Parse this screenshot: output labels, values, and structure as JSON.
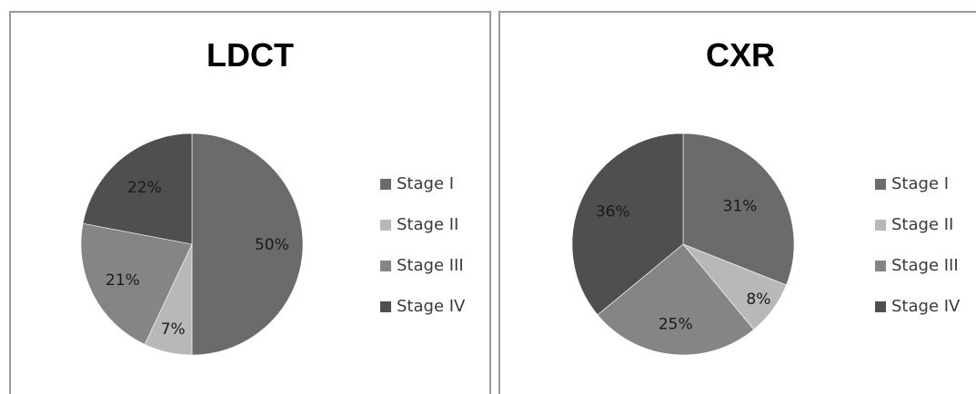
{
  "colors": {
    "Stage I": "#6b6b6b",
    "Stage II": "#b8b8b8",
    "Stage III": "#858585",
    "Stage IV": "#4f4f4f"
  },
  "chart_data": [
    {
      "type": "pie",
      "title": "LDCT",
      "categories": [
        "Stage I",
        "Stage II",
        "Stage III",
        "Stage IV"
      ],
      "values": [
        50,
        7,
        21,
        22
      ],
      "labels": [
        "50%",
        "7%",
        "21%",
        "22%"
      ],
      "legend": "right"
    },
    {
      "type": "pie",
      "title": "CXR",
      "categories": [
        "Stage I",
        "Stage II",
        "Stage III",
        "Stage IV"
      ],
      "values": [
        31,
        8,
        25,
        36
      ],
      "labels": [
        "31%",
        "8%",
        "25%",
        "36%"
      ],
      "legend": "right"
    }
  ]
}
